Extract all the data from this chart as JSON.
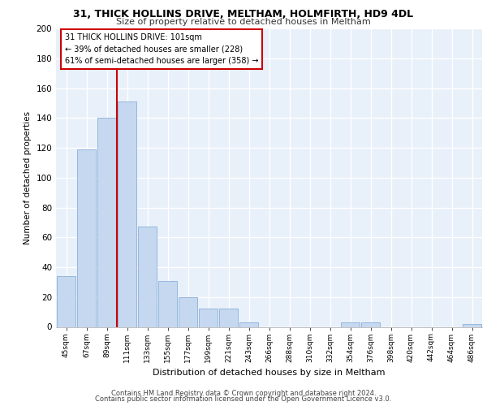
{
  "title1": "31, THICK HOLLINS DRIVE, MELTHAM, HOLMFIRTH, HD9 4DL",
  "title2": "Size of property relative to detached houses in Meltham",
  "xlabel": "Distribution of detached houses by size in Meltham",
  "ylabel": "Number of detached properties",
  "bar_labels": [
    "45sqm",
    "67sqm",
    "89sqm",
    "111sqm",
    "133sqm",
    "155sqm",
    "177sqm",
    "199sqm",
    "221sqm",
    "243sqm",
    "266sqm",
    "288sqm",
    "310sqm",
    "332sqm",
    "354sqm",
    "376sqm",
    "398sqm",
    "420sqm",
    "442sqm",
    "464sqm",
    "486sqm"
  ],
  "bar_values": [
    34,
    119,
    140,
    151,
    67,
    31,
    20,
    12,
    12,
    3,
    0,
    0,
    0,
    0,
    3,
    3,
    0,
    0,
    0,
    0,
    2
  ],
  "bar_color": "#c5d8f0",
  "bar_edge_color": "#8ab0d8",
  "vline_color": "#cc0000",
  "annotation_text": "31 THICK HOLLINS DRIVE: 101sqm\n← 39% of detached houses are smaller (228)\n61% of semi-detached houses are larger (358) →",
  "annotation_box_color": "#ffffff",
  "annotation_box_edge_color": "#cc0000",
  "ylim": [
    0,
    200
  ],
  "yticks": [
    0,
    20,
    40,
    60,
    80,
    100,
    120,
    140,
    160,
    180,
    200
  ],
  "footer1": "Contains HM Land Registry data © Crown copyright and database right 2024.",
  "footer2": "Contains public sector information licensed under the Open Government Licence v3.0.",
  "plot_bg_color": "#e8f0fa",
  "grid_color": "#ffffff",
  "title1_fontsize": 9.0,
  "title2_fontsize": 8.0,
  "vline_x_index": 2.5
}
